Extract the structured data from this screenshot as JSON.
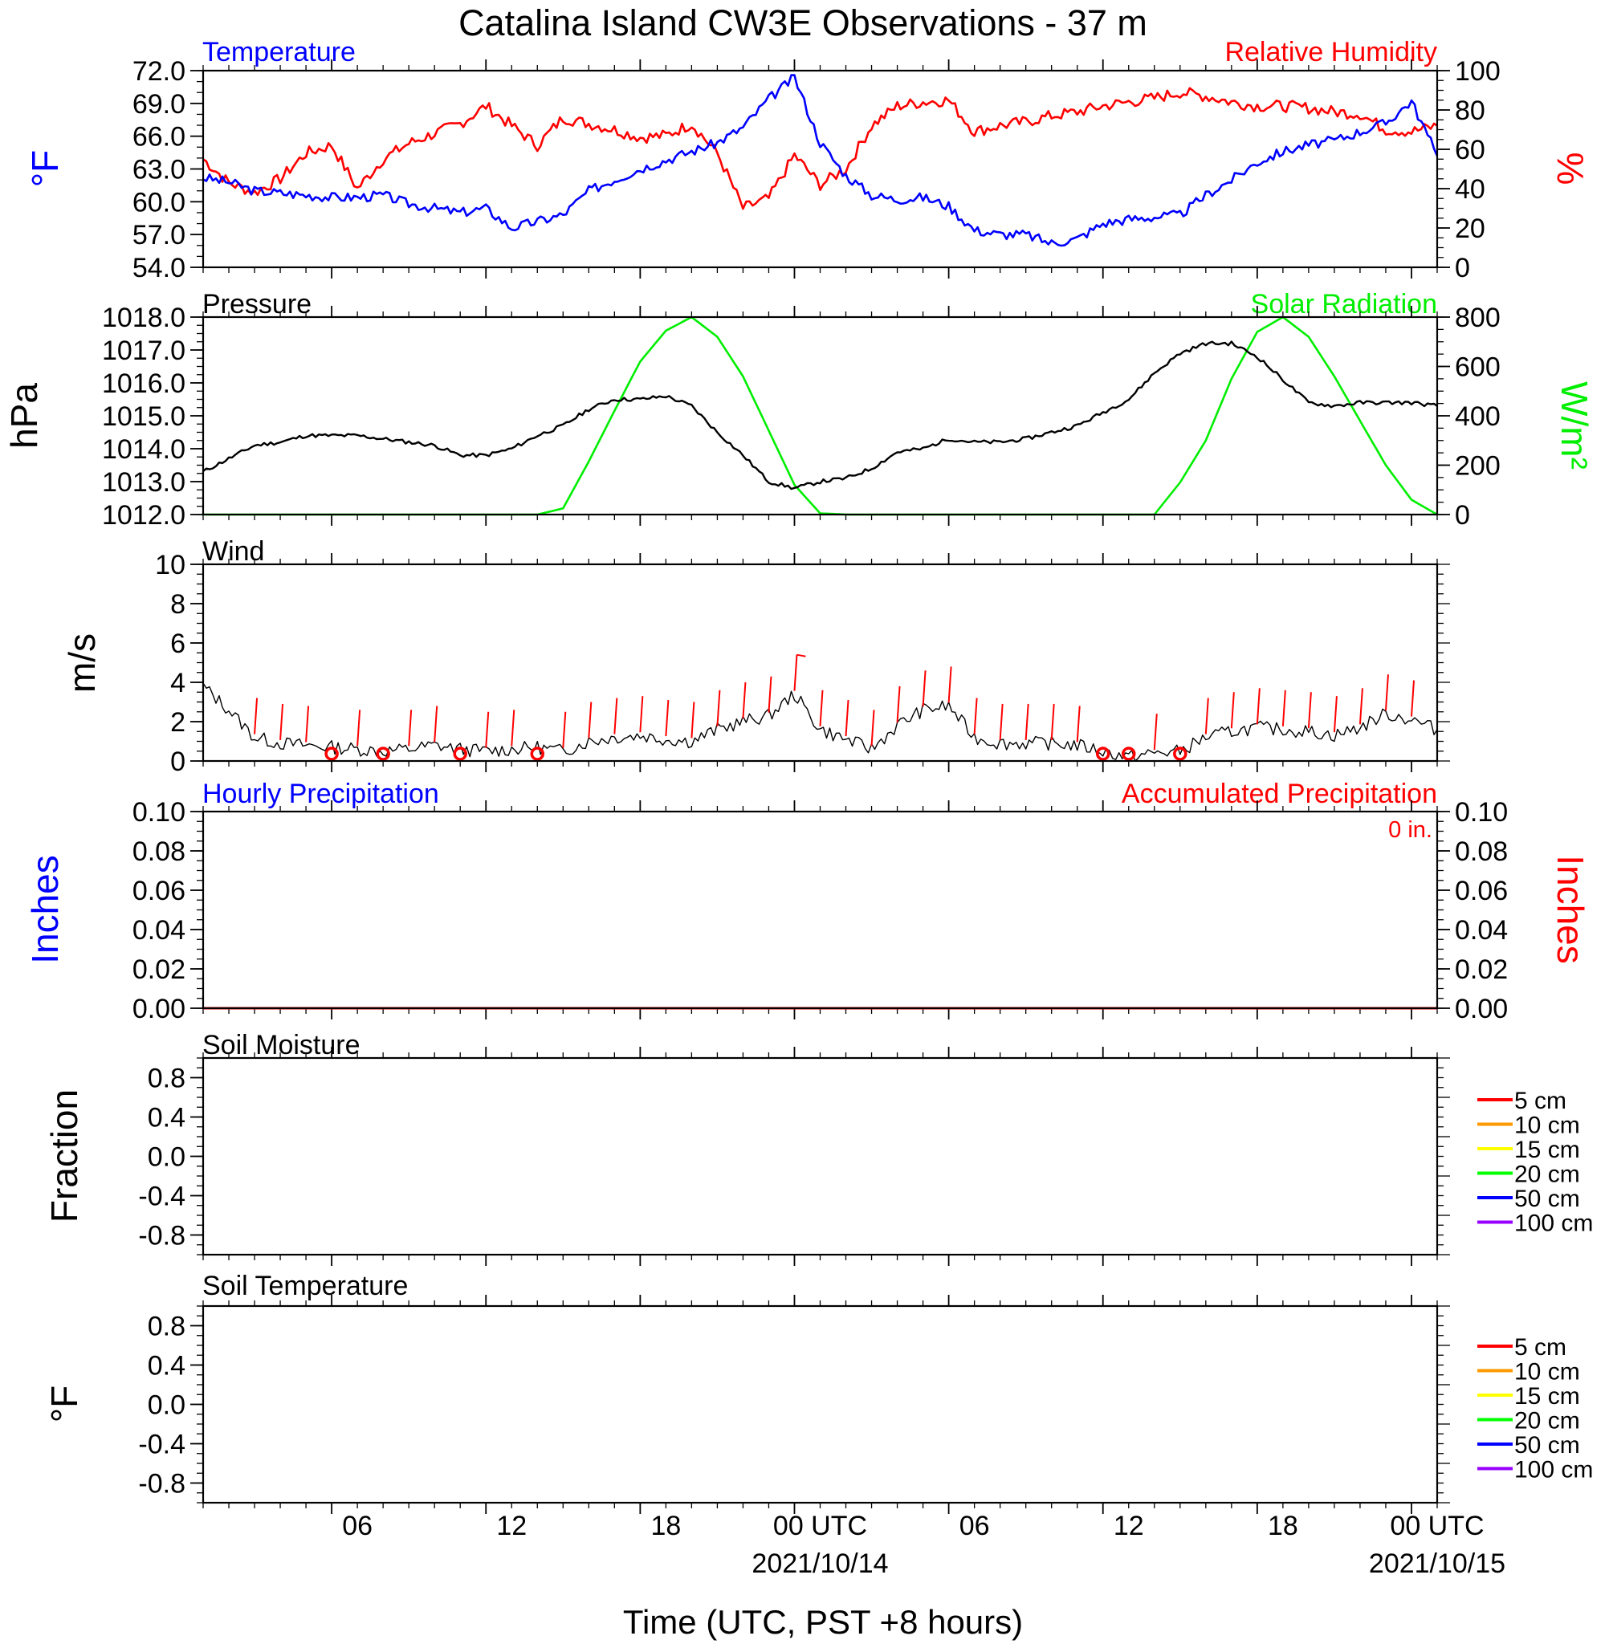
{
  "figure_title": "Catalina Island CW3E Observations - 37 m",
  "x_axis": {
    "label": "Time (UTC, PST +8 hours)",
    "tick_labels": [
      "06",
      "12",
      "18",
      "00 UTC",
      "06",
      "12",
      "18",
      "00 UTC"
    ],
    "date_labels": [
      "2021/10/14",
      "2021/10/15"
    ],
    "start": "2021-10-13T01:00Z",
    "end": "2021-10-15T01:00Z"
  },
  "chart_data": [
    {
      "type": "line",
      "panel": "temperature-humidity",
      "title_left": "Temperature",
      "title_right": "Relative Humidity",
      "ylabel_left": "°F",
      "ylabel_right": "%",
      "ylim_left": [
        54,
        72
      ],
      "ylim_right": [
        0,
        100
      ],
      "yticks_left": [
        "72.0",
        "69.0",
        "66.0",
        "63.0",
        "60.0",
        "57.0",
        "54.0"
      ],
      "yticks_right": [
        "100",
        "80",
        "60",
        "40",
        "20",
        "0"
      ],
      "x_hours": [
        1,
        2,
        3,
        4,
        5,
        6,
        7,
        8,
        9,
        10,
        11,
        12,
        13,
        14,
        15,
        16,
        17,
        18,
        19,
        20,
        21,
        22,
        23,
        24,
        25,
        26,
        27,
        28,
        29,
        30,
        31,
        32,
        33,
        34,
        35,
        36,
        37,
        38,
        39,
        40,
        41,
        42,
        43,
        44,
        45,
        46,
        47,
        48,
        49
      ],
      "series": [
        {
          "name": "Temperature",
          "axis": "left",
          "color": "#0000ff",
          "values": [
            62.2,
            61.8,
            61.0,
            60.8,
            60.6,
            60.4,
            60.4,
            60.6,
            59.8,
            59.4,
            59.0,
            59.4,
            57.6,
            58.2,
            58.8,
            61.0,
            62.0,
            63.0,
            63.8,
            64.6,
            65.4,
            66.8,
            69.4,
            71.4,
            65.4,
            62.4,
            60.6,
            60.2,
            60.4,
            59.6,
            57.4,
            57.0,
            57.0,
            56.2,
            56.6,
            58.0,
            58.4,
            58.6,
            58.8,
            60.6,
            62.0,
            63.6,
            64.6,
            65.2,
            65.6,
            66.4,
            67.2,
            69.2,
            64.2
          ]
        },
        {
          "name": "Relative Humidity",
          "axis": "right",
          "color": "#ff0000",
          "values": [
            55,
            43,
            38,
            45,
            58,
            62,
            40,
            55,
            63,
            68,
            73,
            82,
            72,
            62,
            76,
            73,
            70,
            66,
            67,
            73,
            58,
            30,
            35,
            57,
            42,
            50,
            72,
            82,
            84,
            85,
            69,
            72,
            74,
            77,
            79,
            82,
            84,
            86,
            89,
            87,
            84,
            82,
            82,
            81,
            79,
            78,
            70,
            69,
            72
          ]
        }
      ]
    },
    {
      "type": "line",
      "panel": "pressure-solar",
      "title_left": "Pressure",
      "title_right": "Solar Radiation",
      "ylabel_left": "hPa",
      "ylabel_right": "W/m²",
      "ylim_left": [
        1012,
        1018
      ],
      "ylim_right": [
        0,
        800
      ],
      "yticks_left": [
        "1018.0",
        "1017.0",
        "1016.0",
        "1015.0",
        "1014.0",
        "1013.0",
        "1012.0"
      ],
      "yticks_right": [
        "800",
        "600",
        "400",
        "200",
        "0"
      ],
      "x_hours": [
        1,
        2,
        3,
        4,
        5,
        6,
        7,
        8,
        9,
        10,
        11,
        12,
        13,
        14,
        15,
        16,
        17,
        18,
        19,
        20,
        21,
        22,
        23,
        24,
        25,
        26,
        27,
        28,
        29,
        30,
        31,
        32,
        33,
        34,
        35,
        36,
        37,
        38,
        39,
        40,
        41,
        42,
        43,
        44,
        45,
        46,
        47,
        48,
        49
      ],
      "series": [
        {
          "name": "Pressure",
          "axis": "left",
          "color": "#000000",
          "values": [
            1013.3,
            1013.7,
            1014.1,
            1014.2,
            1014.4,
            1014.4,
            1014.4,
            1014.3,
            1014.2,
            1014.1,
            1013.8,
            1013.8,
            1014.0,
            1014.4,
            1014.7,
            1015.2,
            1015.5,
            1015.5,
            1015.6,
            1015.3,
            1014.5,
            1013.8,
            1013.0,
            1012.8,
            1013.0,
            1013.1,
            1013.4,
            1013.9,
            1014.0,
            1014.3,
            1014.2,
            1014.2,
            1014.3,
            1014.5,
            1014.7,
            1015.1,
            1015.5,
            1016.3,
            1016.9,
            1017.2,
            1017.2,
            1016.8,
            1016.1,
            1015.4,
            1015.3,
            1015.4,
            1015.4,
            1015.4,
            1015.3
          ]
        },
        {
          "name": "Solar Radiation",
          "axis": "right",
          "color": "#00ee00",
          "values": [
            0,
            0,
            0,
            0,
            0,
            0,
            0,
            0,
            0,
            0,
            0,
            0,
            0,
            0,
            25,
            215,
            420,
            620,
            745,
            800,
            720,
            560,
            340,
            120,
            5,
            0,
            0,
            0,
            0,
            0,
            0,
            0,
            0,
            0,
            0,
            0,
            0,
            0,
            130,
            300,
            550,
            740,
            800,
            720,
            560,
            380,
            200,
            60,
            0
          ]
        }
      ]
    },
    {
      "type": "line",
      "panel": "wind",
      "title": "Wind",
      "ylabel": "m/s",
      "ylim": [
        0,
        10
      ],
      "yticks": [
        "10",
        "8",
        "6",
        "4",
        "2",
        "0"
      ],
      "x_hours": [
        1,
        2,
        3,
        4,
        5,
        6,
        7,
        8,
        9,
        10,
        11,
        12,
        13,
        14,
        15,
        16,
        17,
        18,
        19,
        20,
        21,
        22,
        23,
        24,
        25,
        26,
        27,
        28,
        29,
        30,
        31,
        32,
        33,
        34,
        35,
        36,
        37,
        38,
        39,
        40,
        41,
        42,
        43,
        44,
        45,
        46,
        47,
        48,
        49
      ],
      "series": [
        {
          "name": "Wind speed",
          "color": "#000000",
          "values": [
            3.8,
            2.6,
            1.2,
            0.9,
            0.8,
            0.7,
            0.6,
            0.5,
            0.6,
            0.8,
            0.6,
            0.5,
            0.6,
            0.7,
            0.5,
            1.0,
            1.2,
            1.3,
            1.1,
            1.0,
            1.6,
            2.0,
            2.3,
            3.4,
            1.6,
            1.1,
            0.6,
            1.8,
            2.6,
            2.8,
            1.2,
            0.9,
            0.9,
            0.9,
            0.8,
            0.5,
            0.2,
            0.4,
            0.5,
            1.2,
            1.5,
            1.7,
            1.6,
            1.5,
            1.3,
            1.7,
            2.4,
            2.1,
            1.6
          ]
        }
      ],
      "calm_marker_hours": [
        6,
        8,
        11,
        14,
        36,
        37,
        39
      ]
    },
    {
      "type": "line",
      "panel": "precipitation",
      "title_left": "Hourly Precipitation",
      "title_right": "Accumulated Precipitation",
      "accumulated_text": "0 in.",
      "ylabel_left": "Inches",
      "ylabel_right": "Inches",
      "ylim": [
        0,
        0.1
      ],
      "yticks": [
        "0.10",
        "0.08",
        "0.06",
        "0.04",
        "0.02",
        "0.00"
      ],
      "series": [
        {
          "name": "Hourly Precipitation",
          "color": "#0000ff",
          "values": [
            0,
            0
          ]
        },
        {
          "name": "Accumulated Precipitation",
          "color": "#ff0000",
          "values": [
            0,
            0
          ]
        }
      ]
    },
    {
      "type": "line",
      "panel": "soil-moisture",
      "title": "Soil Moisture",
      "ylabel": "Fraction",
      "ylim": [
        -1,
        1
      ],
      "yticks": [
        "0.8",
        "0.4",
        "0.0",
        "-0.4",
        "-0.8"
      ],
      "legend": [
        {
          "name": "5 cm",
          "color": "#ff0000"
        },
        {
          "name": "10 cm",
          "color": "#ff9900"
        },
        {
          "name": "15 cm",
          "color": "#ffff00"
        },
        {
          "name": "20 cm",
          "color": "#00ff00"
        },
        {
          "name": "50 cm",
          "color": "#0000ff"
        },
        {
          "name": "100 cm",
          "color": "#9900ff"
        }
      ]
    },
    {
      "type": "line",
      "panel": "soil-temperature",
      "title": "Soil Temperature",
      "ylabel": "°F",
      "ylim": [
        -1,
        1
      ],
      "yticks": [
        "0.8",
        "0.4",
        "0.0",
        "-0.4",
        "-0.8"
      ],
      "legend": [
        {
          "name": "5 cm",
          "color": "#ff0000"
        },
        {
          "name": "10 cm",
          "color": "#ff9900"
        },
        {
          "name": "15 cm",
          "color": "#ffff00"
        },
        {
          "name": "20 cm",
          "color": "#00ff00"
        },
        {
          "name": "50 cm",
          "color": "#0000ff"
        },
        {
          "name": "100 cm",
          "color": "#9900ff"
        }
      ]
    }
  ]
}
